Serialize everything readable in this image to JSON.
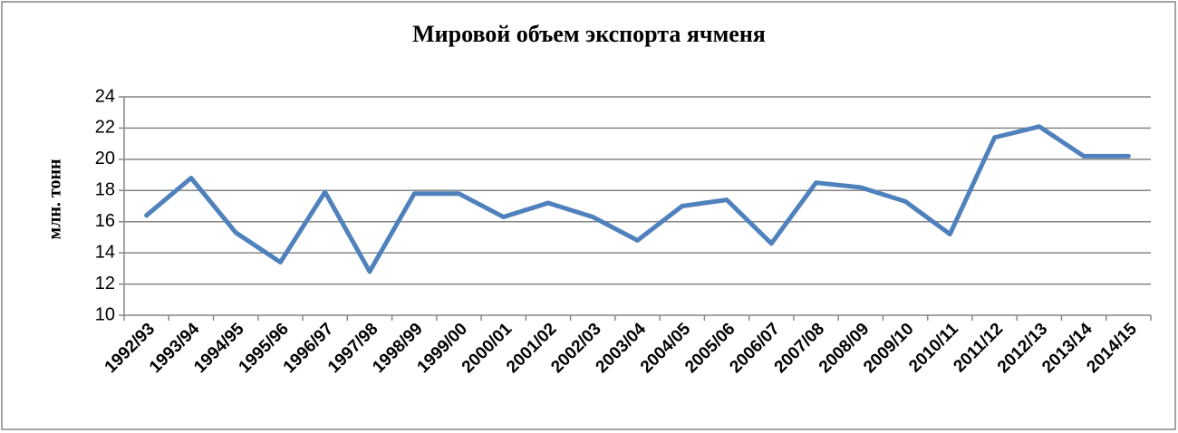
{
  "chart_data": {
    "type": "line",
    "title": "Мировой объем экспорта ячменя",
    "y_label": "млн. тонн",
    "categories": [
      "1992/93",
      "1993/94",
      "1994/95",
      "1995/96",
      "1996/97",
      "1997/98",
      "1998/99",
      "1999/00",
      "2000/01",
      "2001/02",
      "2002/03",
      "2003/04",
      "2004/05",
      "2005/06",
      "2006/07",
      "2007/08",
      "2008/09",
      "2009/10",
      "2010/11",
      "2011/12",
      "2012/13",
      "2013/14",
      "2014/15"
    ],
    "values": [
      16.4,
      18.8,
      15.3,
      13.4,
      17.9,
      12.8,
      17.8,
      17.8,
      16.3,
      17.2,
      16.3,
      14.8,
      17.0,
      17.4,
      14.6,
      18.5,
      18.2,
      17.3,
      15.2,
      21.4,
      22.1,
      20.2,
      20.2
    ],
    "color": "#4f81bd",
    "ylim": [
      10,
      24
    ],
    "yticks": [
      10,
      12,
      14,
      16,
      18,
      20,
      22,
      24
    ],
    "grid": true
  }
}
